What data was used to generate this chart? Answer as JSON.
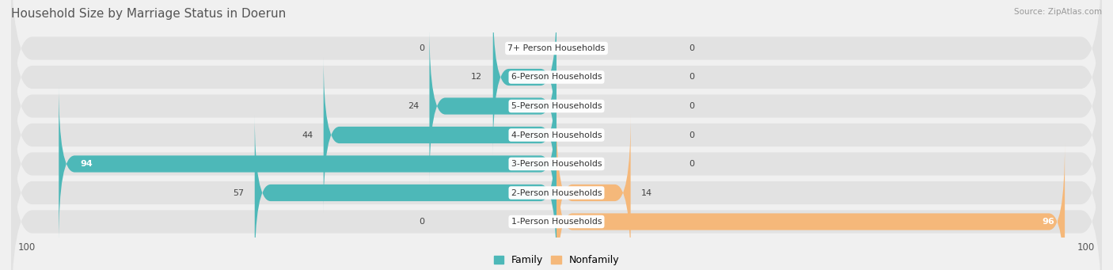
{
  "title": "Household Size by Marriage Status in Doerun",
  "source": "Source: ZipAtlas.com",
  "categories": [
    "7+ Person Households",
    "6-Person Households",
    "5-Person Households",
    "4-Person Households",
    "3-Person Households",
    "2-Person Households",
    "1-Person Households"
  ],
  "family_values": [
    0,
    12,
    24,
    44,
    94,
    57,
    0
  ],
  "nonfamily_values": [
    0,
    0,
    0,
    0,
    0,
    14,
    96
  ],
  "family_color": "#4db8b8",
  "nonfamily_color": "#f5b87a",
  "row_bg_even": "#e8e8e8",
  "row_bg_odd": "#e8e8e8",
  "axis_min": -100,
  "axis_max": 100,
  "background_color": "#f0f0f0"
}
